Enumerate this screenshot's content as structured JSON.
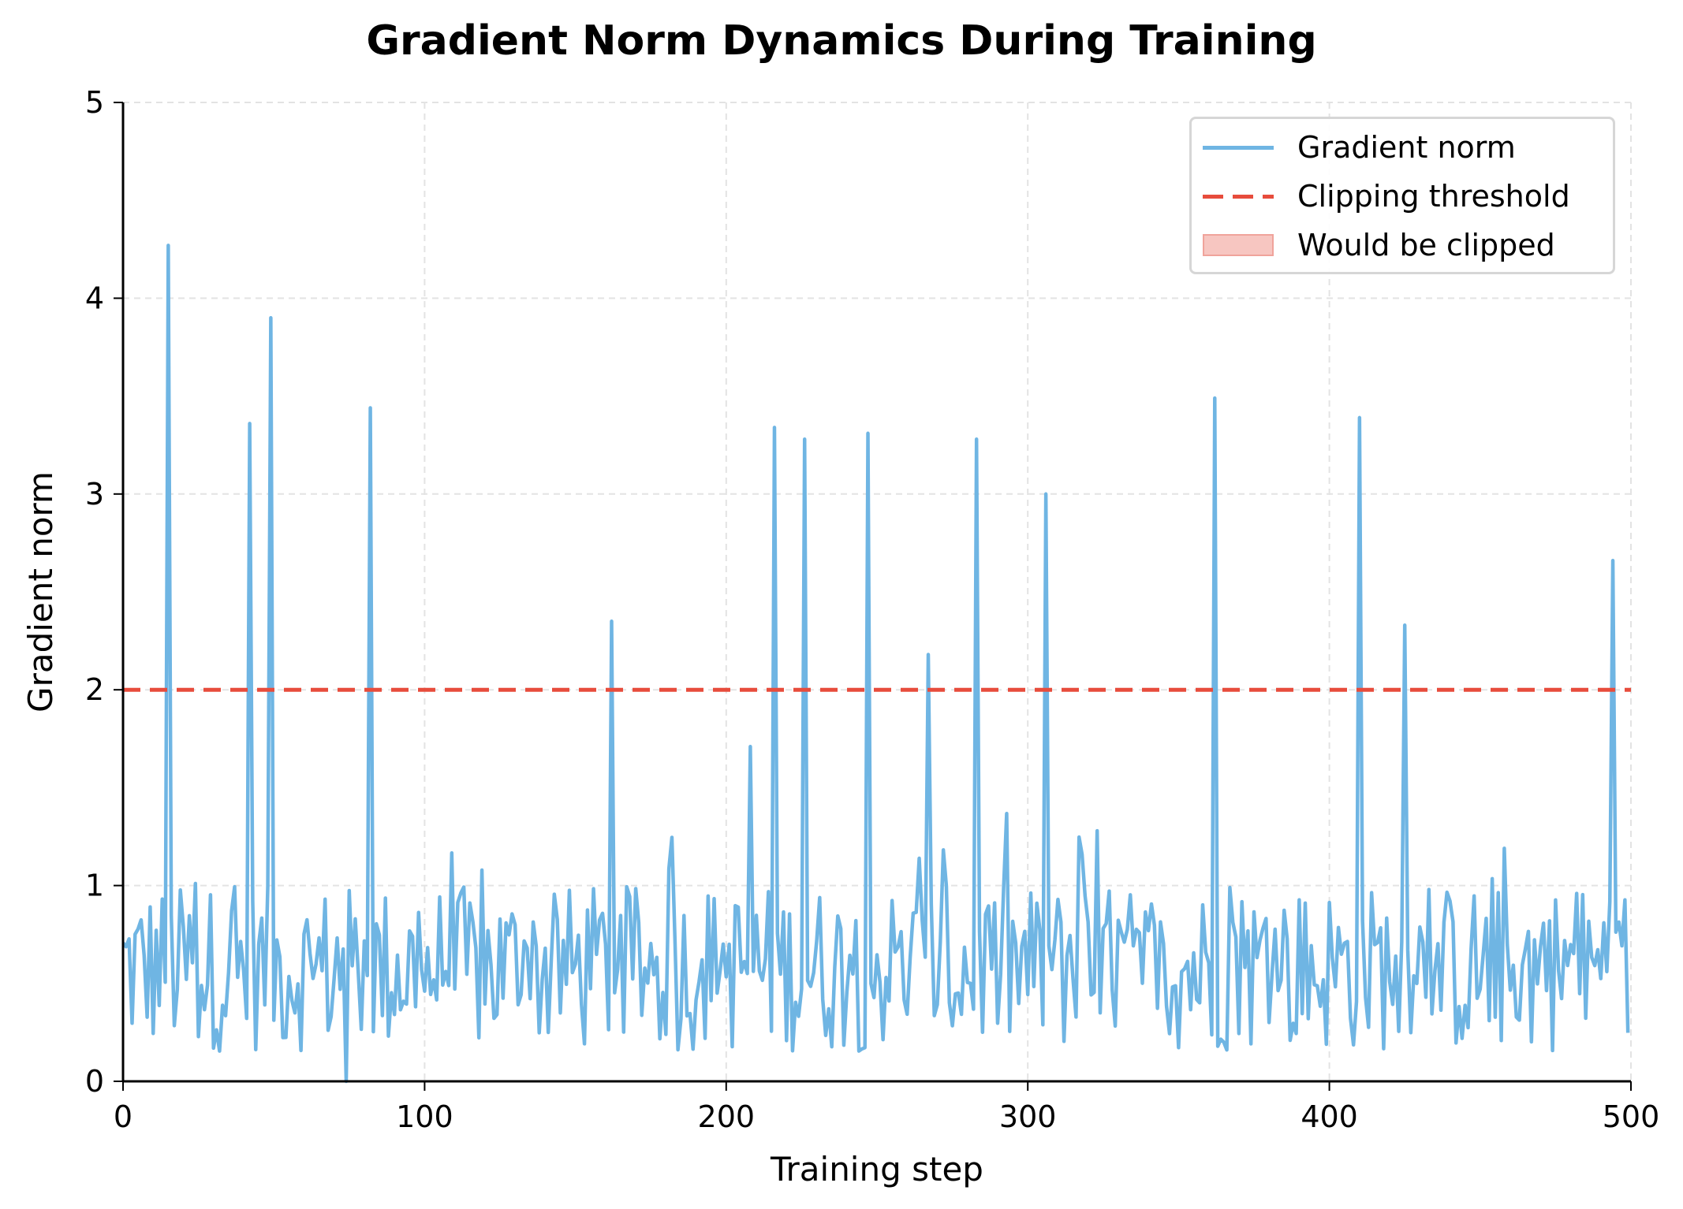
{
  "chart_data": {
    "type": "line",
    "title": "Gradient Norm Dynamics During Training",
    "xlabel": "Training step",
    "ylabel": "Gradient norm",
    "xlim": [
      0,
      500
    ],
    "ylim": [
      0,
      5
    ],
    "xticks": [
      0,
      100,
      200,
      300,
      400,
      500
    ],
    "yticks": [
      0,
      1,
      2,
      3,
      4,
      5
    ],
    "grid": true,
    "legend_position": "upper right",
    "legend": [
      {
        "label": "Gradient norm",
        "style": "solid-line",
        "color": "#6fb5e3"
      },
      {
        "label": "Clipping threshold",
        "style": "dashed-line",
        "color": "#e74c3c"
      },
      {
        "label": "Would be clipped",
        "style": "filled-patch",
        "color": "#f5b7b1"
      }
    ],
    "series": [
      {
        "name": "Gradient norm",
        "color": "#6fb5e3",
        "n_points": 500,
        "baseline_range": [
          0.1,
          1.45
        ],
        "spikes": [
          {
            "x": 15,
            "y": 4.27
          },
          {
            "x": 42,
            "y": 3.36
          },
          {
            "x": 49,
            "y": 3.9
          },
          {
            "x": 82,
            "y": 3.44
          },
          {
            "x": 162,
            "y": 2.35
          },
          {
            "x": 208,
            "y": 1.71
          },
          {
            "x": 216,
            "y": 3.34
          },
          {
            "x": 226,
            "y": 3.28
          },
          {
            "x": 247,
            "y": 3.31
          },
          {
            "x": 267,
            "y": 2.18
          },
          {
            "x": 283,
            "y": 3.28
          },
          {
            "x": 306,
            "y": 3.0
          },
          {
            "x": 362,
            "y": 3.49
          },
          {
            "x": 410,
            "y": 3.39
          },
          {
            "x": 425,
            "y": 2.33
          },
          {
            "x": 494,
            "y": 2.66
          }
        ],
        "notable_min": {
          "x": 74,
          "y": 0.0
        }
      },
      {
        "name": "Clipping threshold",
        "color": "#e74c3c",
        "constant_y": 2.0
      }
    ]
  }
}
